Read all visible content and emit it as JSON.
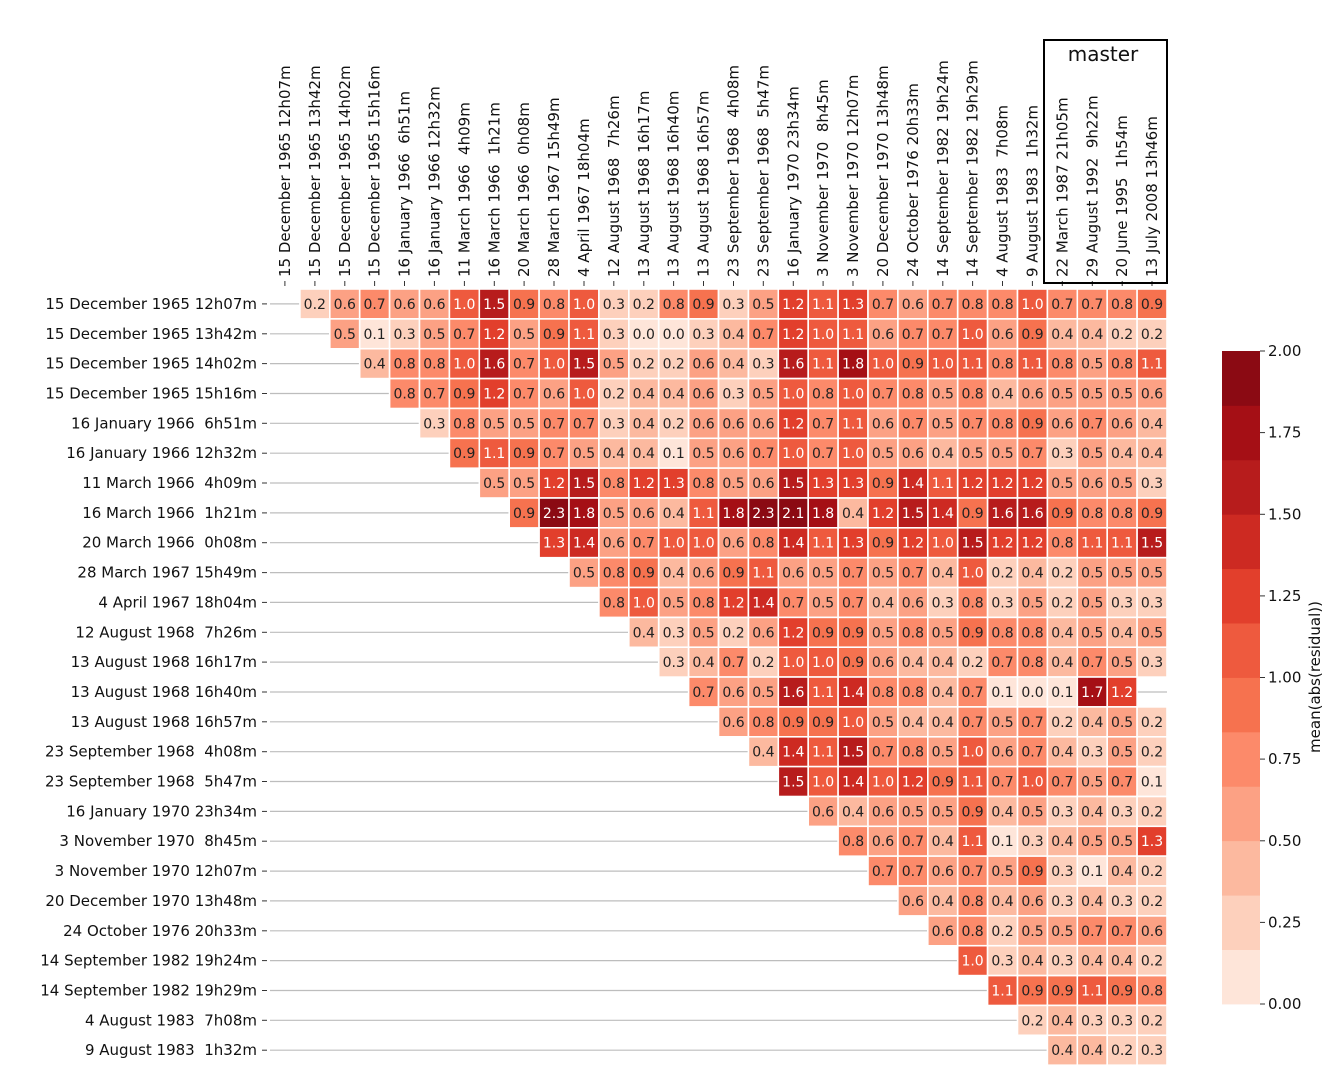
{
  "chart_data": {
    "type": "heatmap",
    "title": "",
    "labels": [
      "15 December 1965 12h07m",
      "15 December 1965 13h42m",
      "15 December 1965 14h02m",
      "15 December 1965 15h16m",
      "16 January 1966  6h51m",
      "16 January 1966 12h32m",
      "11 March 1966  4h09m",
      "16 March 1966  1h21m",
      "20 March 1966  0h08m",
      "28 March 1967 15h49m",
      "4 April 1967 18h04m",
      "12 August 1968  7h26m",
      "13 August 1968 16h17m",
      "13 August 1968 16h40m",
      "13 August 1968 16h57m",
      "23 September 1968  4h08m",
      "23 September 1968  5h47m",
      "16 January 1970 23h34m",
      "3 November 1970  8h45m",
      "3 November 1970 12h07m",
      "20 December 1970 13h48m",
      "24 October 1976 20h33m",
      "14 September 1982 19h24m",
      "14 September 1982 19h29m",
      "4 August 1983  7h08m",
      "9 August 1983  1h32m",
      "22 March 1987 21h05m",
      "29 August 1992  9h22m",
      "20 June 1995  1h54m",
      "13 July 2008 13h46m"
    ],
    "row_count": 26,
    "master_label": "master",
    "master_columns": [
      26,
      27,
      28,
      29
    ],
    "colorbar": {
      "label": "mean(abs(residual))",
      "min": 0,
      "max": 2,
      "ticks": [
        "0.00",
        "0.25",
        "0.50",
        "0.75",
        "1.00",
        "1.25",
        "1.50",
        "1.75",
        "2.00"
      ]
    },
    "rows": [
      [
        0.2,
        0.6,
        0.7,
        0.6,
        0.6,
        1.0,
        1.5,
        0.9,
        0.8,
        1.0,
        0.3,
        0.2,
        0.8,
        0.9,
        0.3,
        0.5,
        1.2,
        1.1,
        1.3,
        0.7,
        0.6,
        0.7,
        0.8,
        0.8,
        1.0,
        0.7,
        0.7,
        0.8,
        0.9
      ],
      [
        0.5,
        0.1,
        0.3,
        0.5,
        0.7,
        1.2,
        0.5,
        0.9,
        1.1,
        0.3,
        0.0,
        0.0,
        0.3,
        0.4,
        0.7,
        1.2,
        1.0,
        1.1,
        0.6,
        0.7,
        0.7,
        1.0,
        0.6,
        0.9,
        0.4,
        0.4,
        0.2,
        0.2
      ],
      [
        0.4,
        0.8,
        0.8,
        1.0,
        1.6,
        0.7,
        1.0,
        1.5,
        0.5,
        0.2,
        0.2,
        0.6,
        0.4,
        0.3,
        1.6,
        1.1,
        1.8,
        1.0,
        0.9,
        1.0,
        1.1,
        0.8,
        1.1,
        0.8,
        0.5,
        0.8,
        1.1
      ],
      [
        0.8,
        0.7,
        0.9,
        1.2,
        0.7,
        0.6,
        1.0,
        0.2,
        0.4,
        0.4,
        0.6,
        0.3,
        0.5,
        1.0,
        0.8,
        1.0,
        0.7,
        0.8,
        0.5,
        0.8,
        0.4,
        0.6,
        0.5,
        0.5,
        0.5,
        0.6
      ],
      [
        0.3,
        0.8,
        0.5,
        0.5,
        0.7,
        0.7,
        0.3,
        0.4,
        0.2,
        0.6,
        0.6,
        0.6,
        1.2,
        0.7,
        1.1,
        0.6,
        0.7,
        0.5,
        0.7,
        0.8,
        0.9,
        0.6,
        0.7,
        0.6,
        0.4
      ],
      [
        0.9,
        1.1,
        0.9,
        0.7,
        0.5,
        0.4,
        0.4,
        0.1,
        0.5,
        0.6,
        0.7,
        1.0,
        0.7,
        1.0,
        0.5,
        0.6,
        0.4,
        0.5,
        0.5,
        0.7,
        0.3,
        0.5,
        0.4,
        0.4
      ],
      [
        0.5,
        0.5,
        1.2,
        1.5,
        0.8,
        1.2,
        1.3,
        0.8,
        0.5,
        0.6,
        1.5,
        1.3,
        1.3,
        0.9,
        1.4,
        1.1,
        1.2,
        1.2,
        1.2,
        0.5,
        0.6,
        0.5,
        0.3
      ],
      [
        0.9,
        2.3,
        1.8,
        0.5,
        0.6,
        0.4,
        1.1,
        1.8,
        2.3,
        2.1,
        1.8,
        0.4,
        1.2,
        1.5,
        1.4,
        0.9,
        1.6,
        1.6,
        0.9,
        0.8,
        0.8,
        0.9
      ],
      [
        1.3,
        1.4,
        0.6,
        0.7,
        1.0,
        1.0,
        0.6,
        0.8,
        1.4,
        1.1,
        1.3,
        0.9,
        1.2,
        1.0,
        1.5,
        1.2,
        1.2,
        0.8,
        1.1,
        1.1,
        1.5
      ],
      [
        0.5,
        0.8,
        0.9,
        0.4,
        0.6,
        0.9,
        1.1,
        0.6,
        0.5,
        0.7,
        0.5,
        0.7,
        0.4,
        1.0,
        0.2,
        0.4,
        0.2,
        0.5,
        0.5,
        0.5
      ],
      [
        0.8,
        1.0,
        0.5,
        0.8,
        1.2,
        1.4,
        0.7,
        0.5,
        0.7,
        0.4,
        0.6,
        0.3,
        0.8,
        0.3,
        0.5,
        0.2,
        0.5,
        0.3,
        0.3
      ],
      [
        0.4,
        0.3,
        0.5,
        0.2,
        0.6,
        1.2,
        0.9,
        0.9,
        0.5,
        0.8,
        0.5,
        0.9,
        0.8,
        0.8,
        0.4,
        0.5,
        0.4,
        0.5
      ],
      [
        0.3,
        0.4,
        0.7,
        0.2,
        1.0,
        1.0,
        0.9,
        0.6,
        0.4,
        0.4,
        0.2,
        0.7,
        0.8,
        0.4,
        0.7,
        0.5,
        0.3
      ],
      [
        0.7,
        0.6,
        0.5,
        1.6,
        1.1,
        1.4,
        0.8,
        0.8,
        0.4,
        0.7,
        0.1,
        0.0,
        0.1,
        1.7,
        1.2,
        null
      ],
      [
        0.6,
        0.8,
        0.9,
        0.9,
        1.0,
        0.5,
        0.4,
        0.4,
        0.7,
        0.5,
        0.7,
        0.2,
        0.4,
        0.5,
        0.2
      ],
      [
        0.4,
        1.4,
        1.1,
        1.5,
        0.7,
        0.8,
        0.5,
        1.0,
        0.6,
        0.7,
        0.4,
        0.3,
        0.5,
        0.2
      ],
      [
        1.5,
        1.0,
        1.4,
        1.0,
        1.2,
        0.9,
        1.1,
        0.7,
        1.0,
        0.7,
        0.5,
        0.7,
        0.1
      ],
      [
        0.6,
        0.4,
        0.6,
        0.5,
        0.5,
        0.9,
        0.4,
        0.5,
        0.3,
        0.4,
        0.3,
        0.2
      ],
      [
        0.8,
        0.6,
        0.7,
        0.4,
        1.1,
        0.1,
        0.3,
        0.4,
        0.5,
        0.5,
        1.3
      ],
      [
        0.7,
        0.7,
        0.6,
        0.7,
        0.5,
        0.9,
        0.3,
        0.1,
        0.4,
        0.2
      ],
      [
        0.6,
        0.4,
        0.8,
        0.4,
        0.6,
        0.3,
        0.4,
        0.3,
        0.2
      ],
      [
        0.6,
        0.8,
        0.2,
        0.5,
        0.5,
        0.7,
        0.7,
        0.6
      ],
      [
        1.0,
        0.3,
        0.4,
        0.3,
        0.4,
        0.4,
        0.2
      ],
      [
        1.1,
        0.9,
        0.9,
        1.1,
        0.9,
        0.8
      ],
      [
        0.2,
        0.4,
        0.3,
        0.3,
        0.2
      ],
      [
        0.4,
        0.4,
        0.2,
        0.3
      ]
    ],
    "colors": [
      "#fee5d9",
      "#fdd0bc",
      "#fcb99f",
      "#fca184",
      "#fc8a6a",
      "#f6724f",
      "#ee5a3e",
      "#e23f2c",
      "#cd2a22",
      "#b71c1c",
      "#a50f15",
      "#8b0a13"
    ]
  }
}
